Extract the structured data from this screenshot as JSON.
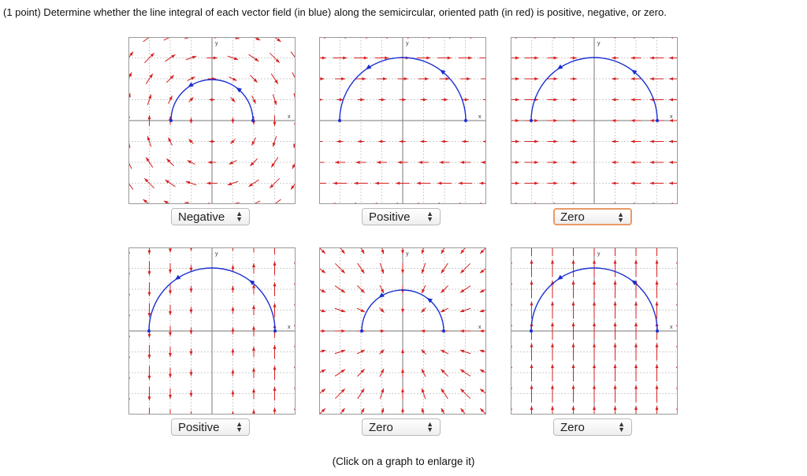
{
  "question": "(1 point) Determine whether the line integral of each vector field (in blue) along the semicircular, oriented path (in red) is positive, negative, or zero.",
  "graphs": [
    {
      "y_label": "y",
      "x_label": "x",
      "answer": "Negative"
    },
    {
      "y_label": "y",
      "x_label": "x",
      "answer": "Positive"
    },
    {
      "y_label": "y",
      "x_label": "x",
      "answer": "Zero"
    },
    {
      "y_label": "y",
      "x_label": "x",
      "answer": "Positive"
    },
    {
      "y_label": "y",
      "x_label": "x",
      "answer": "Zero"
    },
    {
      "y_label": "y",
      "x_label": "x",
      "answer": "Zero"
    }
  ],
  "note": "(Click on a graph to enlarge it)"
}
